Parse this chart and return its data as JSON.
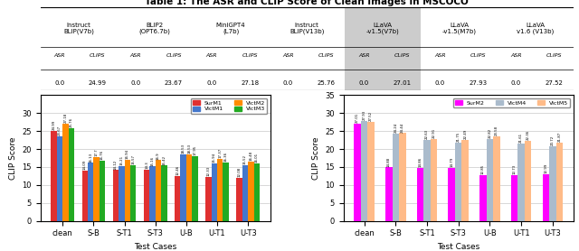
{
  "title": "Table 1: The ASR and CLIP Score of Clean Images in MSCOCO",
  "table": {
    "headers": [
      "Instruct\nBLIP(V7b)",
      "BLIP2\n(OPT6.7b)",
      "MiniGPT4\n(L7b)",
      "Instruct\nBLIP(V13b)",
      "LLaVA\n-v1.5(V7b)",
      "LLaVA\n-v1.5(M7b)",
      "LLaVA\nv1.6 (V13b)"
    ],
    "sub_headers": [
      "ASR",
      "CLIPS",
      "ASR",
      "CLIPS",
      "ASR",
      "CLIPS",
      "ASR",
      "CLIPS",
      "ASR",
      "CLIPS",
      "ASR",
      "CLIPS",
      "ASR",
      "CLIPS"
    ],
    "values": [
      "0.0",
      "24.99",
      "0.0",
      "23.67",
      "0.0",
      "27.18",
      "0.0",
      "25.76",
      "0.0",
      "27.01",
      "0.0",
      "27.93",
      "0.0",
      "27.52"
    ],
    "highlight_col": 4
  },
  "left_chart": {
    "categories": [
      "clean",
      "S-B",
      "S-T1",
      "S-T3",
      "U-B",
      "U-T1",
      "U-T3"
    ],
    "SurM1": [
      24.99,
      14.09,
      14.12,
      14.3,
      12.46,
      12.33,
      12.08
    ],
    "VictM1": [
      23.67,
      16.13,
      15.21,
      15.16,
      18.53,
      15.94,
      15.52
    ],
    "VictM2": [
      27.18,
      17.7,
      16.94,
      16.9,
      18.53,
      17.37,
      16.48
    ],
    "VictM3": [
      25.76,
      16.76,
      15.57,
      15.42,
      17.95,
      16.36,
      16.01
    ],
    "colors": {
      "SurM1": "#e03030",
      "VictM1": "#4477cc",
      "VictM2": "#ff8c00",
      "VictM3": "#22aa22"
    },
    "ylabel": "CLIP Score",
    "xlabel": "Test Cases",
    "ylim": [
      0,
      35
    ],
    "legend": {
      "SurM1": "SurM1",
      "VictM1": "VictM1",
      "VictM2": "VictM2",
      "VictM3": "VictM3"
    }
  },
  "right_chart": {
    "categories": [
      "clean",
      "S-B",
      "S-T1",
      "S-T3",
      "U-B",
      "U-T1",
      "U-T3"
    ],
    "SurM2": [
      27.01,
      14.88,
      14.86,
      14.79,
      12.85,
      12.73,
      12.99
    ],
    "VictM4": [
      27.93,
      24.24,
      22.63,
      21.75,
      22.82,
      21.61,
      20.72
    ],
    "VictM5": [
      27.52,
      24.44,
      22.91,
      22.49,
      23.58,
      22.36,
      21.87
    ],
    "colors": {
      "SurM2": "#ff00ff",
      "VictM4": "#aabbcc",
      "VictM5": "#ffbb88"
    },
    "ylabel": "CLIP Score",
    "xlabel": "Test Cases",
    "ylim": [
      0,
      35
    ],
    "legend": {
      "SurM2": "SurM2",
      "VictM4": "VictM4",
      "VictM5": "VictM5"
    }
  }
}
